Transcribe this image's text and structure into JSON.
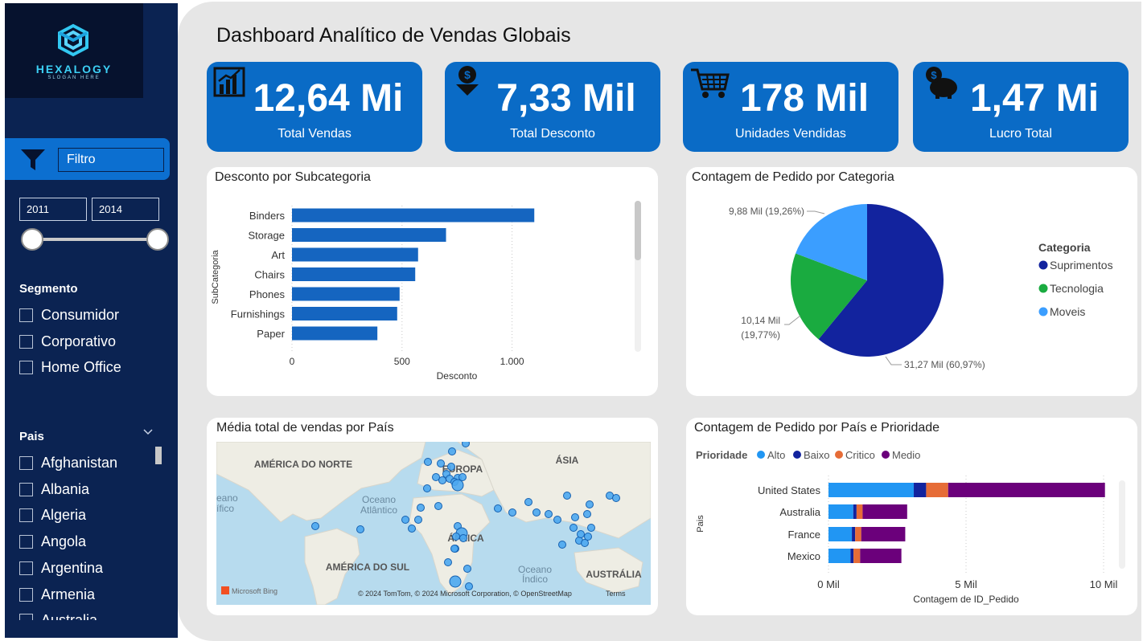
{
  "brand": {
    "name": "HEXALOGY",
    "slogan": "SLOGAN HERE"
  },
  "title": "Dashboard Analítico de Vendas Globais",
  "sidebar": {
    "filter_label": "Filtro",
    "year_start": "2011",
    "year_end": "2014",
    "segment_title": "Segmento",
    "segments": [
      "Consumidor",
      "Corporativo",
      "Home Office"
    ],
    "country_title": "Pais",
    "countries": [
      "Afghanistan",
      "Albania",
      "Algeria",
      "Angola",
      "Argentina",
      "Armenia",
      "Australia"
    ]
  },
  "kpis": [
    {
      "value": "12,64 Mi",
      "label": "Total Vendas",
      "icon": "bar-chart-icon"
    },
    {
      "value": "7,33 Mil",
      "label": "Total  Desconto",
      "icon": "discount-dollar-icon"
    },
    {
      "value": "178 Mil",
      "label": "Unidades Vendidas",
      "icon": "shopping-cart-icon"
    },
    {
      "value": "1,47 Mi",
      "label": "Lucro Total",
      "icon": "piggy-bank-icon"
    }
  ],
  "colors": {
    "kpi": "#0a6bc6",
    "bar": "#1565c0",
    "suprimentos": "#12239e",
    "tecnologia": "#1aab40",
    "moveis": "#3b9eff",
    "alto": "#2196f3",
    "baixo": "#12239e",
    "critico": "#e66c37",
    "medio": "#6b007b"
  },
  "chart_data": [
    {
      "type": "bar",
      "orientation": "horizontal",
      "title": "Desconto por Subcategoria",
      "xlabel": "Desconto",
      "ylabel": "SubCategoria",
      "categories": [
        "Binders",
        "Storage",
        "Art",
        "Chairs",
        "Phones",
        "Furnishings",
        "Paper"
      ],
      "values": [
        1101,
        700,
        573,
        560,
        489,
        478,
        388
      ],
      "xlim": [
        0,
        1250
      ],
      "xticks": [
        "0",
        "500",
        "1.000"
      ],
      "xtick_values": [
        0,
        500,
        1000
      ]
    },
    {
      "type": "pie",
      "title": "Contagem de Pedido por Categoria",
      "legend_title": "Categoria",
      "legend_position": "right",
      "slices": [
        {
          "name": "Suprimentos",
          "value": 31.27,
          "label": "31,27 Mil (60,97%)"
        },
        {
          "name": "Tecnologia",
          "value": 10.14,
          "label": "10,14 Mil",
          "label2": "(19,77%)"
        },
        {
          "name": "Moveis",
          "value": 9.88,
          "label": "9,88 Mil (19,26%)"
        }
      ]
    },
    {
      "type": "scatter",
      "subtype": "map",
      "title": "Média total de vendas por País",
      "regions": [
        "AMÉRICA DO NORTE",
        "EUROPA",
        "ÁSIA",
        "ÁFRICA",
        "AMÉRICA DO SUL",
        "AUSTRÁLIA"
      ],
      "ocean_labels": [
        "Oceano",
        "Atlântico",
        "Oceano",
        "Índico",
        "eano",
        "ífico"
      ],
      "attribution": "© 2024 TomTom, © 2024 Microsoft Corporation, © OpenStreetMap",
      "terms": "Terms",
      "bing": "Microsoft Bing"
    },
    {
      "type": "bar",
      "orientation": "horizontal",
      "stacked": true,
      "title": "Contagem de Pedido por País e Prioridade",
      "legend_title": "Prioridade",
      "legend_position": "top-left",
      "xlabel": "Contagem de ID_Pedido",
      "ylabel": "Pais",
      "xlim": [
        0,
        10
      ],
      "xticks": [
        "0 Mil",
        "5 Mil",
        "10 Mil"
      ],
      "xtick_values": [
        0,
        5,
        10
      ],
      "categories": [
        "United States",
        "Australia",
        "France",
        "Mexico"
      ],
      "series": [
        {
          "name": "Alto",
          "values": [
            3.1,
            0.9,
            0.85,
            0.8
          ]
        },
        {
          "name": "Baixo",
          "values": [
            0.45,
            0.12,
            0.12,
            0.11
          ]
        },
        {
          "name": "Critico",
          "values": [
            0.8,
            0.22,
            0.22,
            0.24
          ]
        },
        {
          "name": "Medio",
          "values": [
            5.7,
            1.62,
            1.6,
            1.5
          ]
        }
      ]
    }
  ]
}
